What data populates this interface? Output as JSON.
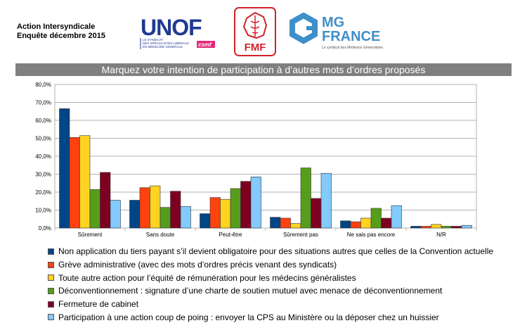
{
  "header": {
    "line1": "Action Intersyndicale",
    "line2": "Enquête décembre 2015"
  },
  "logos": {
    "unof": {
      "name": "UNOF",
      "tagline": [
        "LE SYNDICAT",
        "DES SPÉCIALISTES LIBÉRAUX",
        "EN MÉDECINE GÉNÉRALE"
      ],
      "badge": "csmf"
    },
    "fmf": {
      "name": "FMF"
    },
    "mgfrance": {
      "name_line1": "MG",
      "name_line2": "FRANCE",
      "tagline": "Le syndicat des Médecins Généralistes"
    }
  },
  "colors": {
    "unof_blue": "#1f3a93",
    "unof_pink": "#e6267a",
    "fmf_red": "#d2232a",
    "mg_blue": "#3f8fc8",
    "banner_bg": "#7f7f7f"
  },
  "chart_data": {
    "type": "bar",
    "title": "Marquez votre intention de participation à d’autres mots d’ordres proposés",
    "categories": [
      "Sûrement",
      "Sans doute",
      "Peut-être",
      "Sûrement pas",
      "Ne sais pas encore",
      "N/R"
    ],
    "y_tick_labels": [
      "0,0%",
      "10,0%",
      "20,0%",
      "30,0%",
      "40,0%",
      "50,0%",
      "60,0%",
      "70,0%",
      "80,0%"
    ],
    "ylim": [
      0,
      80
    ],
    "grid": true,
    "legend_position": "bottom",
    "series": [
      {
        "name": "Non application du tiers payant s’il devient obligatoire pour des situations autres que celles de la Convention actuelle",
        "color": "#004586",
        "values": [
          66.5,
          15.5,
          8.0,
          6.0,
          4.0,
          1.0
        ]
      },
      {
        "name": "Grève administrative (avec des mots d’ordres précis venant des syndicats)",
        "color": "#ff420e",
        "values": [
          50.5,
          22.5,
          17.0,
          5.5,
          3.5,
          1.0
        ]
      },
      {
        "name": "Toute autre action pour l’équité de rémunération pour les médecins généralistes",
        "color": "#ffd320",
        "values": [
          51.5,
          23.5,
          16.0,
          2.5,
          5.5,
          2.0
        ]
      },
      {
        "name": "Déconventionnement : signature d’une charte de soutien mutuel avec menace de déconventionnement",
        "color": "#579d1c",
        "values": [
          21.5,
          11.5,
          22.0,
          33.5,
          11.0,
          1.0
        ]
      },
      {
        "name": "Fermeture de cabinet",
        "color": "#7e0021",
        "values": [
          31.0,
          20.5,
          26.0,
          16.5,
          5.5,
          1.0
        ]
      },
      {
        "name": "Participation à une action coup de poing : envoyer la CPS au Ministère ou la déposer chez un huissier",
        "color": "#83caff",
        "values": [
          15.5,
          12.0,
          28.5,
          30.5,
          12.5,
          1.5
        ]
      }
    ]
  }
}
